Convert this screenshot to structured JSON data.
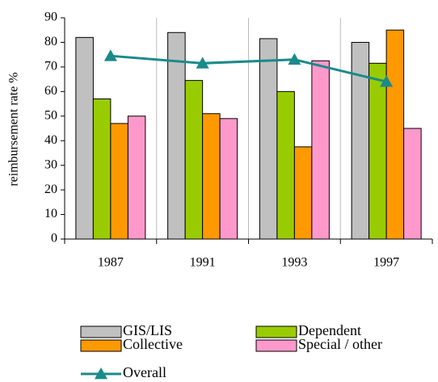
{
  "chart_data": {
    "type": "bar_line",
    "y_label": "reimbursement rate %",
    "categories": [
      "1987",
      "1991",
      "1993",
      "1997"
    ],
    "series": [
      {
        "name": "GIS/LIS",
        "color": "#c0c0c0",
        "values": [
          82,
          84,
          81.5,
          80
        ]
      },
      {
        "name": "Dependent",
        "color": "#99cc00",
        "values": [
          57,
          64.5,
          60,
          71.5
        ]
      },
      {
        "name": "Collective",
        "color": "#ff9900",
        "values": [
          47,
          51,
          37.5,
          85
        ]
      },
      {
        "name": "Special / other",
        "color": "#ff99cc",
        "values": [
          50,
          49,
          72.5,
          45
        ]
      },
      {
        "name": "Overall",
        "color": "#1a8a8a",
        "type": "line",
        "values": [
          74.5,
          71.5,
          73,
          64
        ]
      }
    ],
    "ylim": [
      0,
      90
    ],
    "yticks": [
      0,
      10,
      20,
      30,
      40,
      50,
      60,
      70,
      80,
      90
    ]
  }
}
